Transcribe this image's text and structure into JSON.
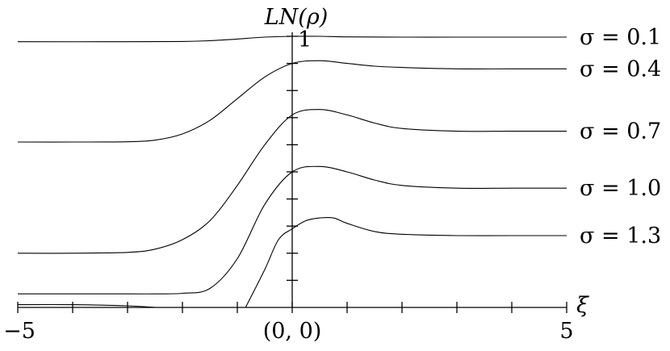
{
  "chart_data": {
    "type": "line",
    "title": "",
    "xlabel": "ξ",
    "ylabel": "LN(ρ)",
    "xlim": [
      -5,
      5
    ],
    "ylim": [
      0,
      1
    ],
    "x_tick_labels": [
      {
        "x": -5,
        "label": "−5"
      },
      {
        "x": 0,
        "label": "(0, 0)"
      },
      {
        "x": 5,
        "label": "5"
      }
    ],
    "y_tick_labels": [
      {
        "y": 1,
        "label": "1"
      }
    ],
    "x_ticks_every": 1,
    "y_ticks_every": 0.1,
    "grid": false,
    "series": [
      {
        "name": "σ = 0.1",
        "x": [
          -5,
          -3,
          -2,
          -1.5,
          -1,
          -0.5,
          0,
          0.5,
          1,
          2,
          3,
          4,
          5
        ],
        "y": [
          0.98,
          0.98,
          0.981,
          0.984,
          0.99,
          0.997,
          1.0,
          1.0,
          0.998,
          0.997,
          0.997,
          0.997,
          0.997
        ]
      },
      {
        "name": "σ = 0.4",
        "x": [
          -5,
          -4,
          -3,
          -2.5,
          -2,
          -1.5,
          -1,
          -0.5,
          0,
          0.5,
          1,
          1.5,
          2,
          3,
          4,
          5
        ],
        "y": [
          0.61,
          0.61,
          0.611,
          0.617,
          0.64,
          0.69,
          0.77,
          0.85,
          0.9,
          0.91,
          0.9,
          0.89,
          0.885,
          0.88,
          0.88,
          0.88
        ]
      },
      {
        "name": "σ = 0.7",
        "x": [
          -5,
          -4,
          -3,
          -2.5,
          -2,
          -1.5,
          -1,
          -0.5,
          0,
          0.5,
          1,
          1.5,
          2,
          3,
          4,
          5
        ],
        "y": [
          0.2,
          0.2,
          0.203,
          0.215,
          0.25,
          0.32,
          0.45,
          0.6,
          0.71,
          0.73,
          0.71,
          0.68,
          0.66,
          0.65,
          0.65,
          0.65
        ]
      },
      {
        "name": "σ = 1.0",
        "x": [
          -5,
          -4,
          -3,
          -2.5,
          -2,
          -1.5,
          -1,
          -0.5,
          0,
          0.5,
          1,
          1.5,
          2,
          3,
          4,
          5
        ],
        "y": [
          0.05,
          0.05,
          0.05,
          0.05,
          0.052,
          0.07,
          0.18,
          0.38,
          0.5,
          0.52,
          0.5,
          0.47,
          0.45,
          0.44,
          0.44,
          0.44
        ]
      },
      {
        "name": "σ = 1.3",
        "x": [
          -0.85,
          -0.5,
          -0.25,
          0,
          0.25,
          0.5,
          0.75,
          1,
          1.5,
          2,
          3,
          4,
          5
        ],
        "y": [
          0.0,
          0.14,
          0.25,
          0.29,
          0.32,
          0.33,
          0.33,
          0.31,
          0.28,
          0.27,
          0.265,
          0.265,
          0.265
        ]
      },
      {
        "name": "",
        "x": [
          -5,
          -4,
          -3,
          -2.5
        ],
        "y": [
          0.01,
          0.01,
          0.006,
          0.0
        ]
      }
    ]
  },
  "legend_labels": [
    "σ = 0.1",
    "σ = 0.4",
    "σ = 0.7",
    "σ = 1.0",
    "σ = 1.3"
  ]
}
